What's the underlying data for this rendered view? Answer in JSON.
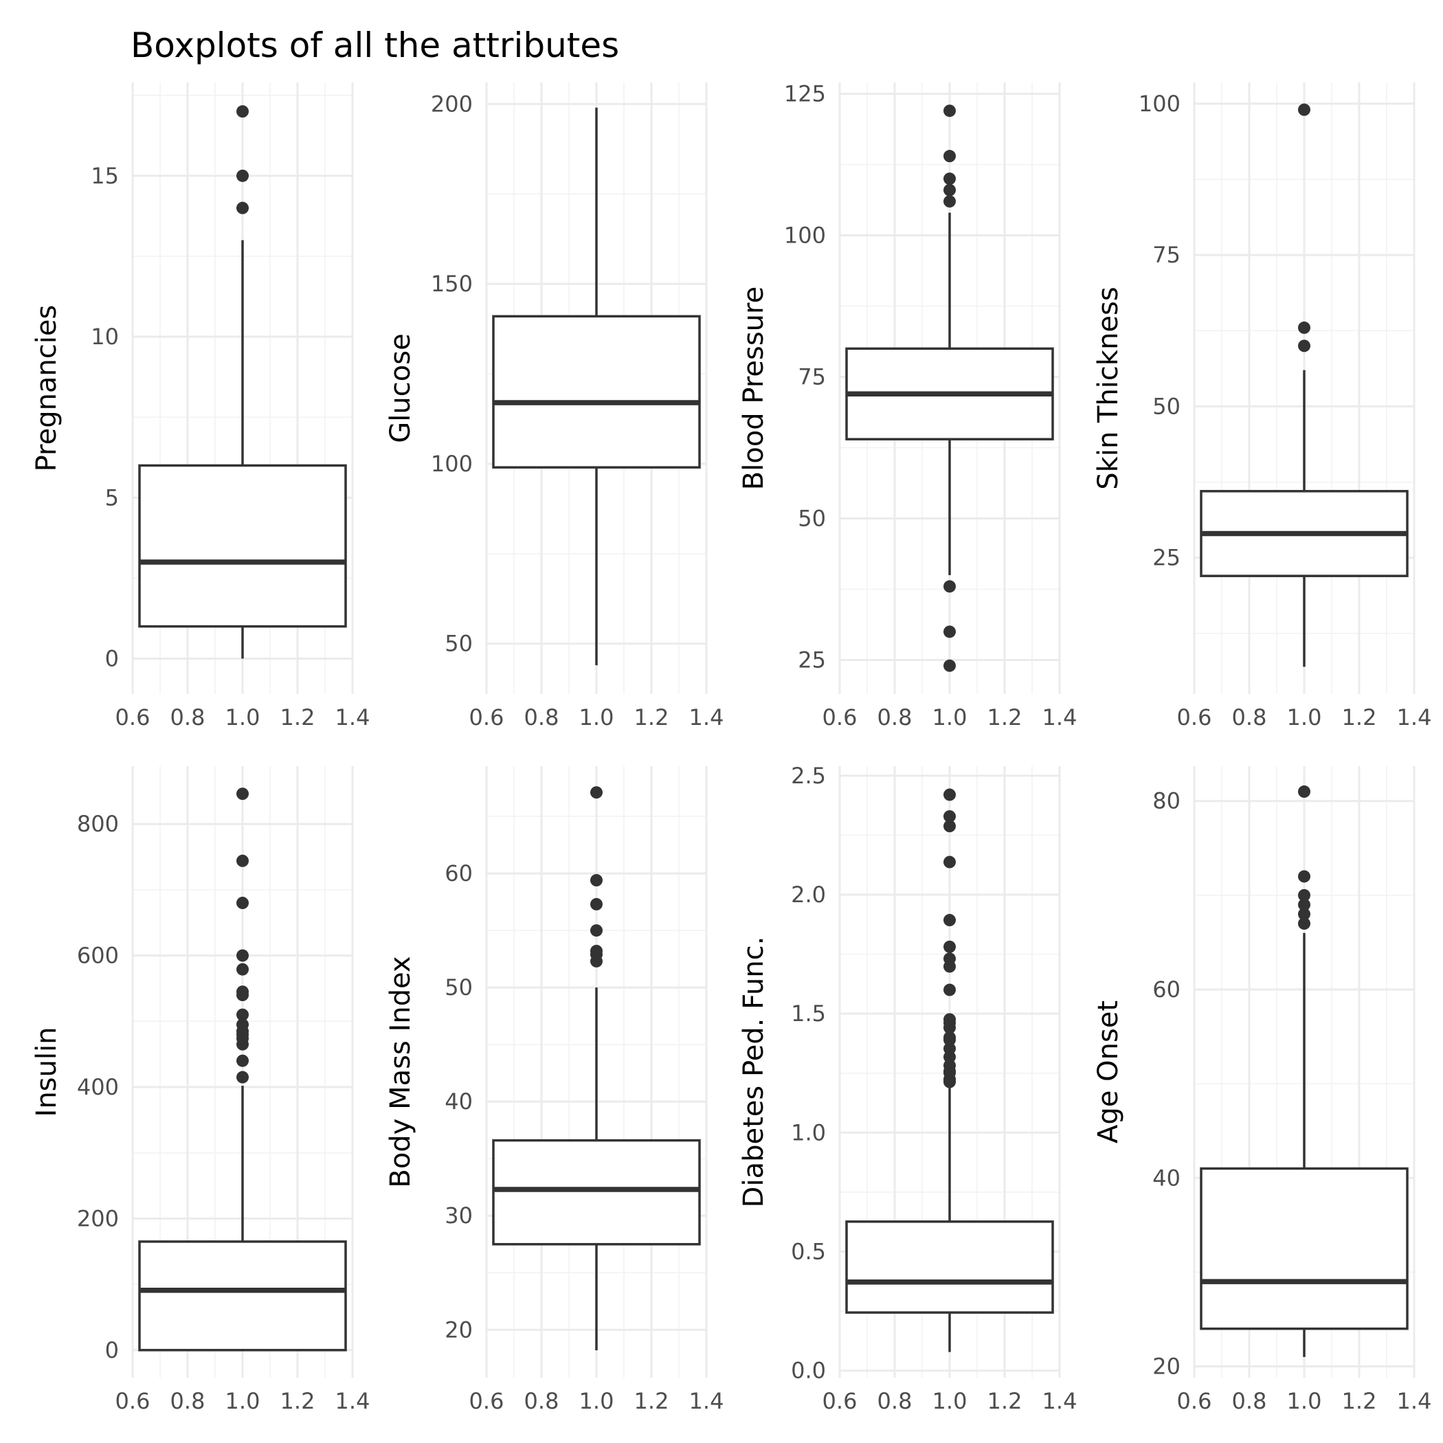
{
  "title": "Boxplots of all the attributes",
  "chart_data": {
    "type": "boxplot",
    "title": "Boxplots of all the attributes",
    "x_ticks": [
      "0.6",
      "0.8",
      "1.0",
      "1.2",
      "1.4"
    ],
    "x_range": [
      0.6,
      1.4
    ],
    "box_x": 1.0,
    "box_halfwidth": 0.375,
    "grid": true,
    "panels": [
      {
        "ylabel": "Pregnancies",
        "ylim": [
          -1.1,
          17.9
        ],
        "yticks": [
          0,
          5,
          10,
          15
        ],
        "stats": {
          "min": 0,
          "q1": 1,
          "median": 3,
          "q3": 6,
          "max": 13
        },
        "outliers": [
          14,
          15,
          17
        ]
      },
      {
        "ylabel": "Glucose",
        "ylim": [
          36,
          206
        ],
        "yticks": [
          50,
          100,
          150,
          200
        ],
        "stats": {
          "min": 44,
          "q1": 99,
          "median": 117,
          "q3": 141,
          "max": 199
        },
        "outliers": []
      },
      {
        "ylabel": "Blood Pressure",
        "ylim": [
          19,
          127
        ],
        "yticks": [
          25,
          50,
          75,
          100,
          125
        ],
        "stats": {
          "min": 40,
          "q1": 64,
          "median": 72,
          "q3": 80,
          "max": 104
        },
        "outliers": [
          24,
          30,
          38,
          106,
          108,
          110,
          114,
          122
        ]
      },
      {
        "ylabel": "Skin Thickness",
        "ylim": [
          2.5,
          103.5
        ],
        "yticks": [
          25,
          50,
          75,
          100
        ],
        "stats": {
          "min": 7,
          "q1": 22,
          "median": 29,
          "q3": 36,
          "max": 56
        },
        "outliers": [
          60,
          63,
          99
        ]
      },
      {
        "ylabel": "Insulin",
        "ylim": [
          -42,
          888
        ],
        "yticks": [
          0,
          200,
          400,
          600,
          800
        ],
        "stats": {
          "min": 0,
          "q1": 0,
          "median": 91,
          "q3": 165,
          "max": 402
        },
        "outliers": [
          415,
          440,
          465,
          474,
          480,
          485,
          495,
          510,
          540,
          545,
          579,
          600,
          680,
          744,
          846
        ]
      },
      {
        "ylabel": "Body Mass Index",
        "ylim": [
          15.8,
          69.4
        ],
        "yticks": [
          20,
          30,
          40,
          50,
          60
        ],
        "stats": {
          "min": 18.2,
          "q1": 27.5,
          "median": 32.3,
          "q3": 36.6,
          "max": 50
        },
        "outliers": [
          52.3,
          52.9,
          53.2,
          55,
          57.3,
          59.4,
          67.1
        ]
      },
      {
        "ylabel": "Diabetes Ped. Func.",
        "ylim": [
          -0.03,
          2.54
        ],
        "yticks": [
          "0.0",
          "0.5",
          "1.0",
          "1.5",
          "2.0",
          "2.5"
        ],
        "stats": {
          "min": 0.078,
          "q1": 0.244,
          "median": 0.372,
          "q3": 0.626,
          "max": 1.191
        },
        "outliers": [
          1.213,
          1.222,
          1.224,
          1.251,
          1.258,
          1.282,
          1.318,
          1.353,
          1.39,
          1.4,
          1.441,
          1.461,
          1.476,
          1.6,
          1.698,
          1.731,
          1.781,
          1.893,
          2.137,
          2.288,
          2.329,
          2.42
        ]
      },
      {
        "ylabel": "Age Onset",
        "ylim": [
          18.8,
          83.7
        ],
        "yticks": [
          20,
          40,
          60,
          80
        ],
        "stats": {
          "min": 21,
          "q1": 24,
          "median": 29,
          "q3": 41,
          "max": 66
        },
        "outliers": [
          67,
          68,
          69,
          70,
          72,
          81
        ]
      }
    ]
  }
}
